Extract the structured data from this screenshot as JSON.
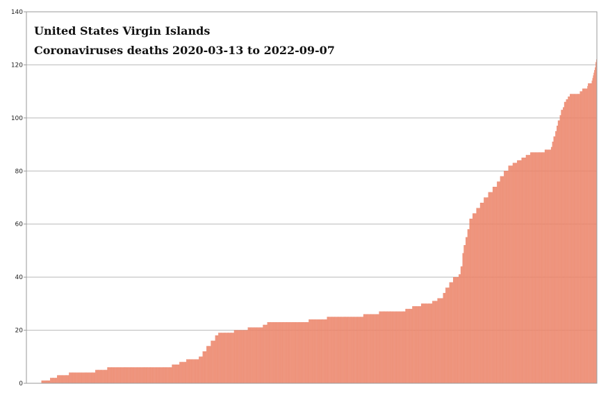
{
  "chart_data": {
    "type": "bar",
    "title": "United States Virgin Islands",
    "subtitle": "Coronaviruses deaths 2020-03-13 to 2022-09-07",
    "xlabel": "",
    "ylabel": "",
    "x_range": [
      "2020-03-13",
      "2022-09-07"
    ],
    "ylim": [
      0,
      140
    ],
    "yticks": [
      0,
      20,
      40,
      60,
      80,
      100,
      120,
      140
    ],
    "grid": true,
    "legend": "none",
    "bar_color": "#f4a58a",
    "bar_edge_color": "#e8755a",
    "series": [
      {
        "points": [
          [
            "2020-03-13",
            0
          ],
          [
            "2020-04-06",
            1
          ],
          [
            "2020-04-20",
            2
          ],
          [
            "2020-05-01",
            3
          ],
          [
            "2020-05-20",
            4
          ],
          [
            "2020-07-01",
            5
          ],
          [
            "2020-07-20",
            6
          ],
          [
            "2020-10-31",
            7
          ],
          [
            "2020-11-12",
            8
          ],
          [
            "2020-11-23",
            9
          ],
          [
            "2020-12-13",
            10
          ],
          [
            "2020-12-19",
            12
          ],
          [
            "2020-12-25",
            14
          ],
          [
            "2021-01-01",
            16
          ],
          [
            "2021-01-08",
            18
          ],
          [
            "2021-01-13",
            19
          ],
          [
            "2021-02-07",
            20
          ],
          [
            "2021-03-01",
            21
          ],
          [
            "2021-03-25",
            22
          ],
          [
            "2021-04-01",
            23
          ],
          [
            "2021-05-15",
            23
          ],
          [
            "2021-06-06",
            24
          ],
          [
            "2021-07-05",
            25
          ],
          [
            "2021-08-10",
            25
          ],
          [
            "2021-09-01",
            26
          ],
          [
            "2021-09-26",
            27
          ],
          [
            "2021-10-25",
            27
          ],
          [
            "2021-11-07",
            28
          ],
          [
            "2021-11-18",
            29
          ],
          [
            "2021-12-02",
            30
          ],
          [
            "2021-12-20",
            31
          ],
          [
            "2021-12-28",
            32
          ],
          [
            "2022-01-06",
            34
          ],
          [
            "2022-01-10",
            36
          ],
          [
            "2022-01-16",
            38
          ],
          [
            "2022-01-22",
            40
          ],
          [
            "2022-01-31",
            41
          ],
          [
            "2022-02-03",
            44
          ],
          [
            "2022-02-06",
            49
          ],
          [
            "2022-02-08",
            52
          ],
          [
            "2022-02-11",
            55
          ],
          [
            "2022-02-14",
            58
          ],
          [
            "2022-02-17",
            62
          ],
          [
            "2022-02-22",
            64
          ],
          [
            "2022-02-28",
            66
          ],
          [
            "2022-03-06",
            68
          ],
          [
            "2022-03-12",
            70
          ],
          [
            "2022-03-19",
            72
          ],
          [
            "2022-03-26",
            74
          ],
          [
            "2022-04-02",
            76
          ],
          [
            "2022-04-07",
            78
          ],
          [
            "2022-04-13",
            80
          ],
          [
            "2022-04-20",
            82
          ],
          [
            "2022-04-27",
            83
          ],
          [
            "2022-05-04",
            84
          ],
          [
            "2022-05-11",
            85
          ],
          [
            "2022-05-18",
            86
          ],
          [
            "2022-05-25",
            87
          ],
          [
            "2022-06-06",
            87
          ],
          [
            "2022-06-17",
            88
          ],
          [
            "2022-06-27",
            89
          ],
          [
            "2022-06-29",
            91
          ],
          [
            "2022-07-01",
            93
          ],
          [
            "2022-07-04",
            95
          ],
          [
            "2022-07-06",
            97
          ],
          [
            "2022-07-08",
            99
          ],
          [
            "2022-07-11",
            101
          ],
          [
            "2022-07-13",
            103
          ],
          [
            "2022-07-16",
            104
          ],
          [
            "2022-07-18",
            106
          ],
          [
            "2022-07-21",
            107
          ],
          [
            "2022-07-24",
            108
          ],
          [
            "2022-07-27",
            109
          ],
          [
            "2022-08-06",
            109
          ],
          [
            "2022-08-12",
            110
          ],
          [
            "2022-08-16",
            111
          ],
          [
            "2022-08-20",
            111
          ],
          [
            "2022-08-24",
            112
          ],
          [
            "2022-08-25",
            113
          ],
          [
            "2022-08-28",
            113
          ],
          [
            "2022-08-31",
            114
          ],
          [
            "2022-09-01",
            115
          ],
          [
            "2022-09-02",
            116
          ],
          [
            "2022-09-03",
            117
          ],
          [
            "2022-09-04",
            118
          ],
          [
            "2022-09-05",
            119
          ],
          [
            "2022-09-06",
            120
          ],
          [
            "2022-09-06",
            121
          ],
          [
            "2022-09-07",
            122
          ]
        ]
      }
    ]
  }
}
